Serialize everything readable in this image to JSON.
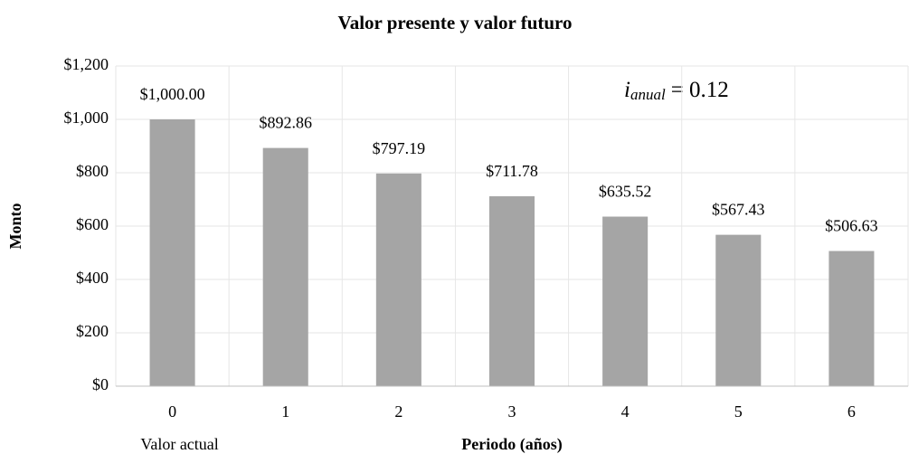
{
  "chart_data": {
    "type": "bar",
    "title": "Valor presente y valor futuro",
    "x_label": "Periodo (años)",
    "y_label": "Monto",
    "categories": [
      "0",
      "1",
      "2",
      "3",
      "4",
      "5",
      "6"
    ],
    "category_subtitle": "Valor actual",
    "values": [
      1000.0,
      892.86,
      797.19,
      711.78,
      635.52,
      567.43,
      506.63
    ],
    "value_labels": [
      "$1,000.00",
      "$892.86",
      "$797.19",
      "$711.78",
      "$635.52",
      "$567.43",
      "$506.63"
    ],
    "color": "#a5a5a5",
    "ylim": [
      0,
      1200
    ],
    "yticks": [
      {
        "value": 0,
        "label": "$0"
      },
      {
        "value": 200,
        "label": "$200"
      },
      {
        "value": 400,
        "label": "$400"
      },
      {
        "value": 600,
        "label": "$600"
      },
      {
        "value": 800,
        "label": "$800"
      },
      {
        "value": 1000,
        "label": "$1,000"
      },
      {
        "value": 1200,
        "label": "$1,200"
      }
    ],
    "grid": true,
    "annotation": {
      "variable": "i",
      "subscript": "anual",
      "text": "= 0.12"
    }
  }
}
